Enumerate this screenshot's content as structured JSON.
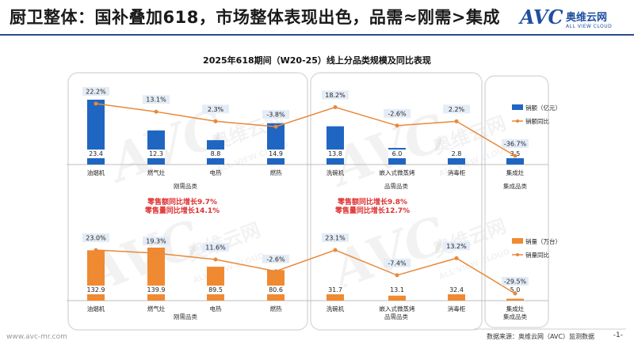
{
  "header": {
    "title": "厨卫整体：国补叠加618，市场整体表现出色，品需≈刚需>集成",
    "logo_mark": "AVC",
    "logo_cn": "奥维云网",
    "logo_en": "ALL VIEW CLOUD"
  },
  "watermark": {
    "text_mark": "AVC",
    "text_cn": "奥维云网",
    "text_en": "ALL VIEW CLOUD"
  },
  "footer": {
    "url": "www.avc-mr.com",
    "source": "数据来源：奥维云网（AVC）监测数据",
    "page": "-1-"
  },
  "annotations": [
    {
      "line1": "零售额同比增长9.7%",
      "line2": "零售量同比增长14.1%"
    },
    {
      "line1": "零售额同比增长9.8%",
      "line2": "零售量同比增长12.7%"
    }
  ],
  "colors": {
    "sales_amount": "#1f66c2",
    "sales_volume": "#ef8a32",
    "yoy_line": "#e8893a",
    "annotation": "#e03030",
    "frame": "#dcdcdc"
  },
  "chart_data": [
    {
      "type": "bar+line",
      "title": "2025年618期间（W20-25）线上分品类规模及同比表现",
      "categories": [
        "油烟机",
        "燃气灶",
        "电热",
        "燃热",
        "洗碗机",
        "嵌入式微蒸烤",
        "消毒柜",
        "集成灶"
      ],
      "groups": [
        {
          "label": "刚需品类",
          "categories": [
            "油烟机",
            "燃气灶",
            "电热",
            "燃热"
          ]
        },
        {
          "label": "品需品类",
          "categories": [
            "洗碗机",
            "嵌入式微蒸烤",
            "消毒柜"
          ]
        },
        {
          "label": "集成品类",
          "categories": [
            "集成灶"
          ]
        }
      ],
      "series": [
        {
          "name": "销额（亿元）",
          "kind": "bar",
          "values": [
            23.4,
            12.3,
            8.8,
            14.9,
            13.8,
            6.0,
            2.8,
            3.5
          ],
          "labels": [
            "23.4",
            "12.3",
            "8.8",
            "14.9",
            "13.8",
            "6.0",
            "2.8",
            "3.5"
          ]
        },
        {
          "name": "销额同比",
          "kind": "line",
          "values": [
            22.2,
            13.1,
            2.3,
            -3.8,
            18.2,
            -2.6,
            2.2,
            -36.7
          ],
          "labels": [
            "22.2%",
            "13.1%",
            "2.3%",
            "-3.8%",
            "18.2%",
            "-2.6%",
            "2.2%",
            "-36.7%"
          ]
        }
      ]
    },
    {
      "type": "bar+line",
      "categories": [
        "油烟机",
        "燃气灶",
        "电热",
        "燃热",
        "洗碗机",
        "嵌入式微蒸烤",
        "消毒柜",
        "集成灶"
      ],
      "groups": [
        {
          "label": "刚需品类",
          "categories": [
            "油烟机",
            "燃气灶",
            "电热",
            "燃热"
          ]
        },
        {
          "label": "品需品类",
          "categories": [
            "洗碗机",
            "嵌入式微蒸烤",
            "消毒柜"
          ]
        },
        {
          "label": "集成品类",
          "categories": [
            "集成灶"
          ]
        }
      ],
      "series": [
        {
          "name": "销量（万台）",
          "kind": "bar",
          "values": [
            132.9,
            139.9,
            89.5,
            80.6,
            31.7,
            13.1,
            32.4,
            5.0
          ],
          "labels": [
            "132.9",
            "139.9",
            "89.5",
            "80.6",
            "31.7",
            "13.1",
            "32.4",
            "5.0"
          ]
        },
        {
          "name": "销量同比",
          "kind": "line",
          "values": [
            23.0,
            19.3,
            11.6,
            -2.6,
            23.1,
            -7.4,
            13.2,
            -29.5
          ],
          "labels": [
            "23.0%",
            "19.3%",
            "11.6%",
            "-2.6%",
            "23.1%",
            "-7.4%",
            "13.2%",
            "-29.5%"
          ]
        }
      ]
    }
  ]
}
